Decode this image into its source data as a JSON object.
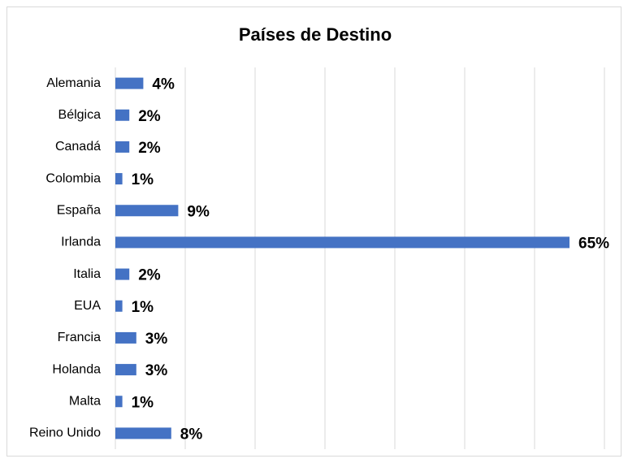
{
  "chart_data": {
    "type": "bar",
    "orientation": "horizontal",
    "title": "Países de Destino",
    "categories": [
      "Alemania",
      "Bélgica",
      "Canadá",
      "Colombia",
      "España",
      "Irlanda",
      "Italia",
      "EUA",
      "Francia",
      "Holanda",
      "Malta",
      "Reino Unido"
    ],
    "values": [
      4,
      2,
      2,
      1,
      9,
      65,
      2,
      1,
      3,
      3,
      1,
      8
    ],
    "value_labels": [
      "4%",
      "2%",
      "2%",
      "1%",
      "9%",
      "65%",
      "2%",
      "1%",
      "3%",
      "3%",
      "1%",
      "8%"
    ],
    "color": "#4472c4",
    "xlim": [
      0,
      70
    ],
    "xticks": [
      0,
      10,
      20,
      30,
      40,
      50,
      60,
      70
    ],
    "grid": true
  }
}
